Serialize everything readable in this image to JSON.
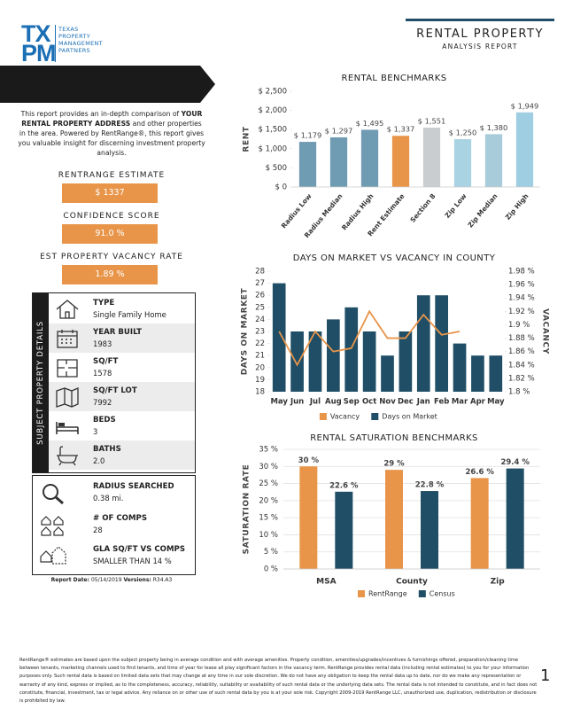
{
  "header": {
    "logo_letters": [
      "TX",
      "PM"
    ],
    "logo_lines": [
      "TEXAS",
      "PROPERTY",
      "MANAGEMENT",
      "PARTNERS"
    ],
    "title": "RENTAL PROPERTY",
    "subtitle": "ANALYSIS  REPORT"
  },
  "intro": {
    "before": "This report provides an in-depth comparison of",
    "bold": "YOUR RENTAL PROPERTY ADDRESS",
    "after": "and other properties in the area. Powered by RentRange®, this report gives you valuable insight for discerning investment property analysis."
  },
  "metrics": [
    {
      "label": "RENTRANGE ESTIMATE",
      "value": "$ 1337"
    },
    {
      "label": "CONFIDENCE  SCORE",
      "value": "91.0 %"
    },
    {
      "label": "EST PROPERTY VACANCY RATE",
      "value": "1.89 %"
    }
  ],
  "details": {
    "side_label": "SUBJECT PROPERTY DETAILS",
    "items": [
      {
        "label": "TYPE",
        "value": "Single Family Home"
      },
      {
        "label": "YEAR BUILT",
        "value": "1983"
      },
      {
        "label": "SQ/FT",
        "value": "1578"
      },
      {
        "label": "SQ/FT LOT",
        "value": "7992"
      },
      {
        "label": "BEDS",
        "value": "3"
      },
      {
        "label": "BATHS",
        "value": "2.0"
      }
    ]
  },
  "search": {
    "items": [
      {
        "label": "RADIUS SEARCHED",
        "value": "0.38 mi."
      },
      {
        "label": "# OF COMPS",
        "value": "28"
      },
      {
        "label": "GLA SQ/FT VS COMPS",
        "value": "SMALLER THAN 14 %"
      }
    ]
  },
  "report_info": {
    "date_label": "Report Date:",
    "date": "05/14/2019",
    "version_label": "Versions:",
    "version": "R34.A3"
  },
  "chart_data": [
    {
      "type": "bar",
      "title": "RENTAL BENCHMARKS",
      "ylabel": "RENT",
      "categories": [
        "Radius Low",
        "Radius Median",
        "Radius High",
        "Rent Estimate",
        "Section 8",
        "Zip Low",
        "Zip Median",
        "Zip High"
      ],
      "values": [
        1179,
        1297,
        1495,
        1337,
        1551,
        1250,
        1380,
        1949
      ],
      "value_labels": [
        "$ 1,179",
        "$ 1,297",
        "$ 1,495",
        "$ 1,337",
        "$ 1,551",
        "$ 1,250",
        "$ 1,380",
        "$ 1,949"
      ],
      "colors": [
        "#6f9bb3",
        "#6f9bb3",
        "#6f9bb3",
        "#e8954a",
        "#c9cdd0",
        "#a9d3e2",
        "#a9ccda",
        "#9fcde2"
      ],
      "ylim": [
        0,
        2500
      ],
      "yticks": [
        {
          "value": 0,
          "label": "$ 0"
        },
        {
          "value": 500,
          "label": "$ 500"
        },
        {
          "value": 1000,
          "label": "$ 1,000"
        },
        {
          "value": 1500,
          "label": "$ 1,500"
        },
        {
          "value": 2000,
          "label": "$ 2,000"
        },
        {
          "value": 2500,
          "label": "$ 2,500"
        }
      ],
      "grid": false
    },
    {
      "type": "combo",
      "title": "DAYS ON MARKET VS VACANCY IN COUNTY",
      "ylabel": "DAYS ON MARKET",
      "y2label": "VACANCY",
      "categories": [
        "May",
        "Jun",
        "Jul",
        "Aug",
        "Sep",
        "Oct",
        "Nov",
        "Dec",
        "Jan",
        "Feb",
        "Mar",
        "Apr",
        "May"
      ],
      "series": [
        {
          "name": "Vacancy",
          "kind": "line",
          "axis": "y2",
          "color": "#e8954a",
          "values": [
            1.89,
            1.84,
            1.89,
            1.86,
            1.865,
            1.92,
            1.88,
            1.88,
            1.915,
            1.885,
            1.89,
            null,
            null
          ]
        },
        {
          "name": "Days on Market",
          "kind": "bar",
          "color": "#1f4e66",
          "values": [
            27,
            23,
            23,
            24,
            25,
            23,
            21,
            23,
            26,
            26,
            22,
            21,
            21
          ]
        }
      ],
      "ylim": [
        18,
        28
      ],
      "yticks": [
        18,
        19,
        20,
        21,
        22,
        23,
        24,
        25,
        26,
        27,
        28
      ],
      "y2lim": [
        1.8,
        1.98
      ],
      "y2ticks": [
        {
          "value": 1.8,
          "label": "1.8 %"
        },
        {
          "value": 1.82,
          "label": "1.82 %"
        },
        {
          "value": 1.84,
          "label": "1.84 %"
        },
        {
          "value": 1.86,
          "label": "1.86 %"
        },
        {
          "value": 1.88,
          "label": "1.88 %"
        },
        {
          "value": 1.9,
          "label": "1.9 %"
        },
        {
          "value": 1.92,
          "label": "1.92 %"
        },
        {
          "value": 1.94,
          "label": "1.94 %"
        },
        {
          "value": 1.96,
          "label": "1.96 %"
        },
        {
          "value": 1.98,
          "label": "1.98 %"
        }
      ],
      "grid": false,
      "legend": "bottom"
    },
    {
      "type": "bar",
      "title": "RENTAL SATURATION BENCHMARKS",
      "ylabel": "SATURATION RATE",
      "categories": [
        "MSA",
        "County",
        "Zip"
      ],
      "series": [
        {
          "name": "RentRange",
          "color": "#e8954a",
          "values": [
            30,
            29,
            26.6
          ],
          "value_labels": [
            "30 %",
            "29 %",
            "26.6 %"
          ]
        },
        {
          "name": "Census",
          "color": "#1f4e66",
          "values": [
            22.6,
            22.8,
            29.4
          ],
          "value_labels": [
            "22.6 %",
            "22.8 %",
            "29.4 %"
          ]
        }
      ],
      "ylim": [
        0,
        35
      ],
      "yticks": [
        {
          "value": 0,
          "label": "0 %"
        },
        {
          "value": 5,
          "label": "5 %"
        },
        {
          "value": 10,
          "label": "10 %"
        },
        {
          "value": 15,
          "label": "15 %"
        },
        {
          "value": 20,
          "label": "20 %"
        },
        {
          "value": 25,
          "label": "25 %"
        },
        {
          "value": 30,
          "label": "30 %"
        },
        {
          "value": 35,
          "label": "35 %"
        }
      ],
      "grid": true,
      "legend": "bottom"
    }
  ],
  "footer": {
    "disclaimer": "RentRange® estimates are based upon the subject property being in average condition and with average amenities. Property condition, amenities/upgrades/incentives & furnishings offered, preparation/cleaning time between tenants, marketing channels used to find tenants, and time of year for lease all play significant factors in the vacancy term. RentRange provides rental data (including rental estimates) to you for your information purposes only. Such rental data is based on limited data sets that may change at any time in our sole discretion. We do not have any obligation to keep the rental data up to date, nor do we make any representation or warranty of any kind, express or implied, as to the completeness, accuracy, reliability, suitability or availability of such rental data or the underlying data sets. The rental data is not intended to constitute, and in fact does not constitute, financial, investment, tax or legal advice. Any reliance on or other use of such rental data by you is at your sole risk. Copyright 2009-2019 RentRange LLC, unauthorized use, duplication, redistribution or disclosure is prohibited by law.",
    "page_number": "1"
  }
}
